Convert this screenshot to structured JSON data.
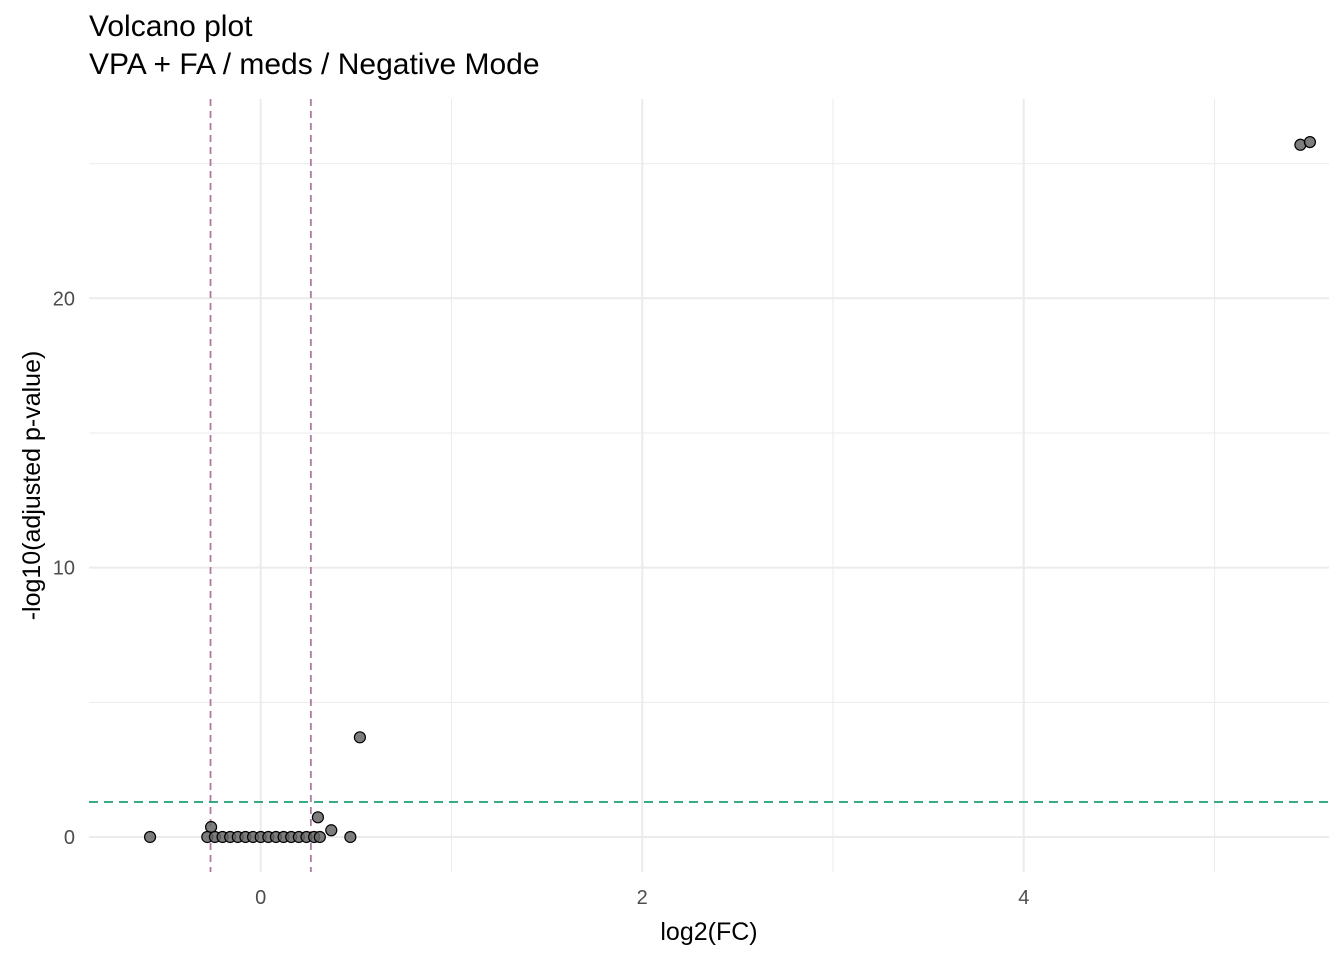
{
  "chart_data": {
    "type": "scatter",
    "title": "Volcano plot",
    "subtitle": "VPA + FA / meds / Negative Mode",
    "xlabel": "log2(FC)",
    "ylabel": "-log10(adjusted p-value)",
    "xlim": [
      -0.9,
      5.6
    ],
    "ylim": [
      -1.3,
      27.4
    ],
    "x_ticks": [
      0,
      2,
      4
    ],
    "x_tick_labels": [
      "0",
      "2",
      "4"
    ],
    "x_minor_breaks": [
      -1,
      1,
      3,
      5
    ],
    "y_ticks": [
      0,
      10,
      20
    ],
    "y_tick_labels": [
      "0",
      "10",
      "20"
    ],
    "y_minor_breaks": [
      5,
      15,
      25
    ],
    "grid": true,
    "legend": "none",
    "fc_thresholds": [
      -0.263,
      0.263
    ],
    "p_threshold": 1.3,
    "colors": {
      "points": "#666666",
      "fc_lines": "#b07aa1",
      "p_line": "#1b9e77",
      "grid": "#ebebeb"
    },
    "points": [
      {
        "x": 5.45,
        "y": 25.7
      },
      {
        "x": 5.5,
        "y": 25.8
      },
      {
        "x": 0.52,
        "y": 3.7
      },
      {
        "x": 0.3,
        "y": 0.73
      },
      {
        "x": 0.37,
        "y": 0.25
      },
      {
        "x": -0.26,
        "y": 0.37
      },
      {
        "x": -0.58,
        "y": 0.0
      },
      {
        "x": 0.47,
        "y": 0.0
      },
      {
        "x": -0.28,
        "y": 0.0
      },
      {
        "x": -0.24,
        "y": 0.0
      },
      {
        "x": -0.2,
        "y": 0.0
      },
      {
        "x": -0.16,
        "y": 0.0
      },
      {
        "x": -0.12,
        "y": 0.0
      },
      {
        "x": -0.08,
        "y": 0.0
      },
      {
        "x": -0.04,
        "y": 0.0
      },
      {
        "x": 0.0,
        "y": 0.0
      },
      {
        "x": 0.04,
        "y": 0.0
      },
      {
        "x": 0.08,
        "y": 0.0
      },
      {
        "x": 0.12,
        "y": 0.0
      },
      {
        "x": 0.16,
        "y": 0.0
      },
      {
        "x": 0.2,
        "y": 0.0
      },
      {
        "x": 0.24,
        "y": 0.0
      },
      {
        "x": 0.28,
        "y": 0.0
      },
      {
        "x": 0.31,
        "y": 0.0
      }
    ]
  }
}
